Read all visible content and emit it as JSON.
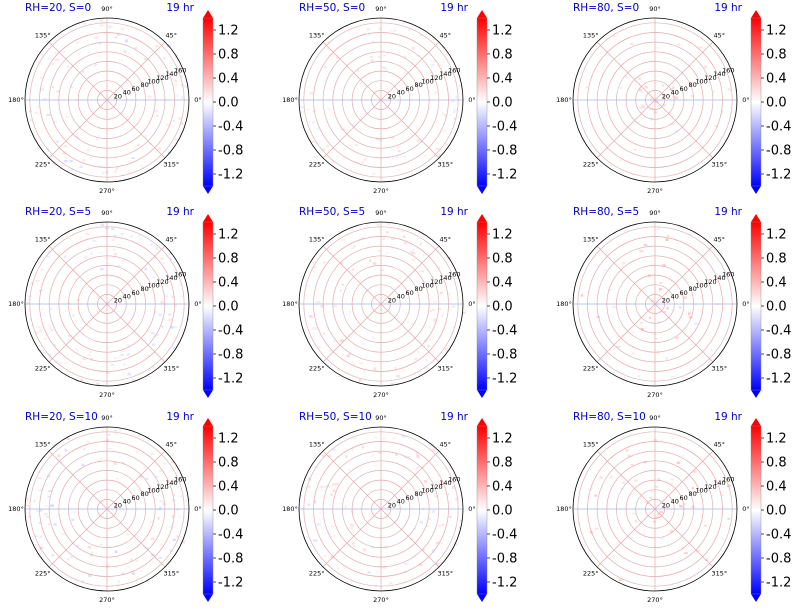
{
  "chart_data": {
    "type": "polar heatmap grid",
    "layout": {
      "rows": 3,
      "cols": 3
    },
    "angle_ticks_deg": [
      "0°",
      "45°",
      "90°",
      "135°",
      "180°",
      "225°",
      "270°",
      "315°"
    ],
    "radial_ticks": [
      "20",
      "40",
      "60",
      "80",
      "100",
      "120",
      "140",
      "160"
    ],
    "radial_range": [
      0,
      170
    ],
    "colormap": "bwr",
    "colorbar": {
      "range": [
        -1.4,
        1.4
      ],
      "ticks": [
        "1.2",
        "0.8",
        "0.4",
        "0.0",
        "-0.4",
        "-0.8",
        "-1.2"
      ],
      "extend": "both"
    },
    "panels": [
      {
        "title": "RH=20, S=0",
        "time_label": "19 hr",
        "level_min": -0.3,
        "level_max": 0.3,
        "pattern": "scattered speckle, mostly pale"
      },
      {
        "title": "RH=50, S=0",
        "time_label": "19 hr",
        "level_min": -0.2,
        "level_max": 0.3,
        "pattern": "scattered speckle, mostly pale"
      },
      {
        "title": "RH=80, S=0",
        "time_label": "19 hr",
        "level_min": -0.2,
        "level_max": 0.4,
        "pattern": "sparse speckle near center"
      },
      {
        "title": "RH=20, S=5",
        "time_label": "19 hr",
        "level_min": -0.3,
        "level_max": 0.3,
        "pattern": "scattered speckle, mostly pale"
      },
      {
        "title": "RH=50, S=5",
        "time_label": "19 hr",
        "level_min": -0.2,
        "level_max": 0.4,
        "pattern": "scattered speckle, mostly pale"
      },
      {
        "title": "RH=80, S=5",
        "time_label": "19 hr",
        "level_min": -0.2,
        "level_max": 0.6,
        "pattern": "sparse speckle near center"
      },
      {
        "title": "RH=20, S=10",
        "time_label": "19 hr",
        "level_min": -0.4,
        "level_max": 0.4,
        "pattern": "scattered speckle, mostly pale"
      },
      {
        "title": "RH=50, S=10",
        "time_label": "19 hr",
        "level_min": -0.3,
        "level_max": 0.4,
        "pattern": "scattered speckle, mostly pale"
      },
      {
        "title": "RH=80, S=10",
        "time_label": "19 hr",
        "level_min": -0.2,
        "level_max": 0.6,
        "pattern": "sparse speckle near center"
      }
    ]
  },
  "colors": {
    "title_color": "#0000cc",
    "grid_red": "#e4a8a8",
    "grid_blue": "#a8b4e8",
    "axis_text": "#000000",
    "cbar_high": "#ff0000",
    "cbar_mid": "#ffffff",
    "cbar_low": "#0000ff"
  }
}
